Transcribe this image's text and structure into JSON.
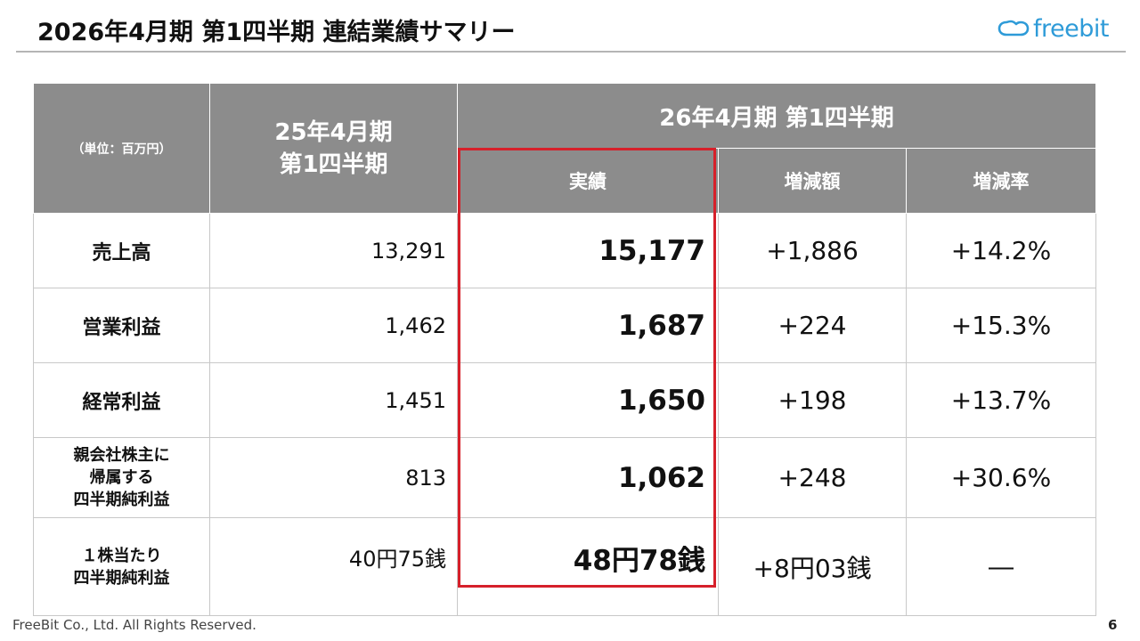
{
  "header": {
    "title": "2026年4月期 第1四半期 連結業績サマリー",
    "logo_text": "freebit",
    "logo_color": "#2e9bd8"
  },
  "table": {
    "unit_label": "（単位：百万円）",
    "prev_header_line1": "25年4月期",
    "prev_header_line2": "第1四半期",
    "current_header": "26年4月期 第1四半期",
    "sub_headers": [
      "実績",
      "増減額",
      "増減率"
    ],
    "rows": [
      {
        "label": [
          "売上高"
        ],
        "prev": "13,291",
        "actual": "15,177",
        "change": "+1,886",
        "rate": "+14.2%"
      },
      {
        "label": [
          "営業利益"
        ],
        "prev": "1,462",
        "actual": "1,687",
        "change": "+224",
        "rate": "+15.3%"
      },
      {
        "label": [
          "経常利益"
        ],
        "prev": "1,451",
        "actual": "1,650",
        "change": "+198",
        "rate": "+13.7%"
      },
      {
        "label": [
          "親会社株主に",
          "帰属する",
          "四半期純利益"
        ],
        "prev": "813",
        "actual": "1,062",
        "change": "+248",
        "rate": "+30.6%"
      },
      {
        "label": [
          "１株当たり",
          "四半期純利益"
        ],
        "prev": "40円75銭",
        "actual": "48円78銭",
        "change": "+8円03銭",
        "rate": "―"
      }
    ],
    "header_bg": "#8c8c8c",
    "highlight_color": "#d6202a"
  },
  "footer": {
    "copyright": "FreeBit Co., Ltd. All Rights Reserved.",
    "page_number": "6"
  }
}
